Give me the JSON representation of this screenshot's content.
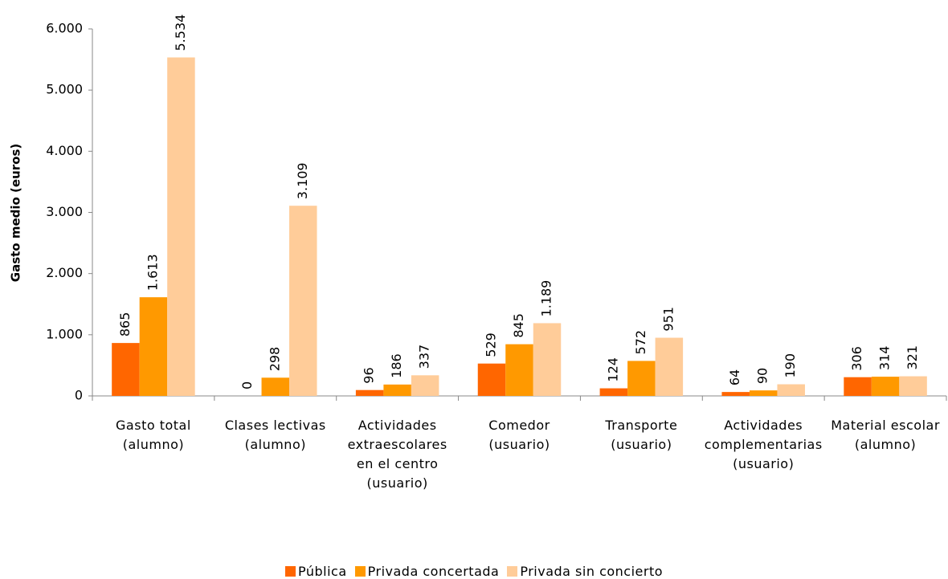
{
  "chart_data": {
    "type": "bar",
    "y_label": "Gasto medio (euros)",
    "categories": [
      "Gasto total (alumno)",
      "Clases lectivas (alumno)",
      "Actividades extraescolares en el centro (usuario)",
      "Comedor (usuario)",
      "Transporte (usuario)",
      "Actividades complementarias (usuario)",
      "Material escolar (alumno)"
    ],
    "series": [
      {
        "name": "Pública",
        "color": "#ff6600",
        "values": [
          865,
          0,
          96,
          529,
          124,
          64,
          306
        ],
        "value_labels": [
          "865",
          "0",
          "96",
          "529",
          "124",
          "64",
          "306"
        ]
      },
      {
        "name": "Privada concertada",
        "color": "#ff9900",
        "values": [
          1613,
          298,
          186,
          845,
          572,
          90,
          314
        ],
        "value_labels": [
          "1.613",
          "298",
          "186",
          "845",
          "572",
          "90",
          "314"
        ]
      },
      {
        "name": "Privada sin concierto",
        "color": "#ffcc99",
        "values": [
          5534,
          3109,
          337,
          1189,
          951,
          190,
          321
        ],
        "value_labels": [
          "5.534",
          "3.109",
          "337",
          "1.189",
          "951",
          "190",
          "321"
        ]
      }
    ],
    "ylim": [
      0,
      6000
    ],
    "yticks": [
      0,
      {
        "value": 1000,
        "label": "1.000"
      },
      {
        "value": 2000,
        "label": "2.000"
      },
      {
        "value": 3000,
        "label": "3.000"
      },
      {
        "value": 4000,
        "label": "4.000"
      },
      {
        "value": 5000,
        "label": "5.000"
      },
      {
        "value": 6000,
        "label": "6.000"
      }
    ],
    "legend": "bottom"
  }
}
